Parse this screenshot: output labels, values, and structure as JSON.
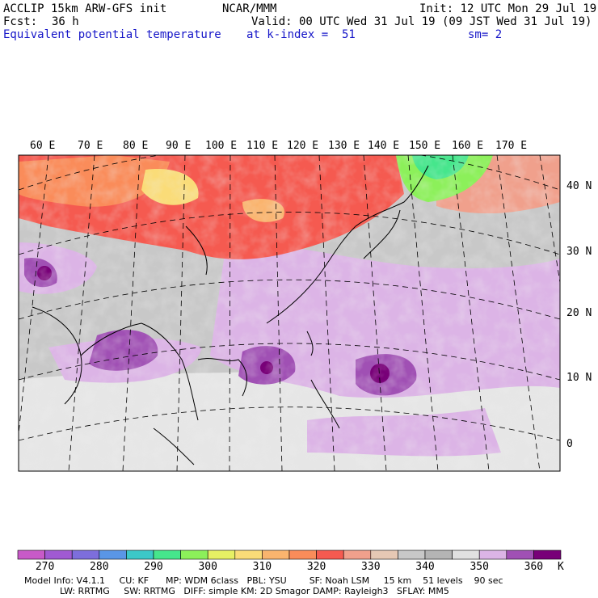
{
  "header": {
    "model": "ACCLIP 15km ARW-GFS init",
    "org": "NCAR/MMM",
    "init": "Init: 12 UTC Mon 29 Jul 19",
    "fcst_label": "Fcst:",
    "fcst_value": "36 h",
    "valid": "Valid: 00 UTC Wed 31 Jul 19 (09 JST Wed 31 Jul 19)",
    "field": "Equivalent potential temperature",
    "level": "at k-index =  51",
    "smoothing": "sm= 2"
  },
  "map": {
    "longitude_labels": [
      "60 E",
      "70 E",
      "80 E",
      "90 E",
      "100 E",
      "110 E",
      "120 E",
      "130 E",
      "140 E",
      "150 E",
      "160 E",
      "170 E"
    ],
    "latitude_labels": [
      "40 N",
      "30 N",
      "20 N",
      "10 N",
      "0"
    ]
  },
  "colorbar": {
    "unit": "K",
    "tick_labels": [
      "270",
      "280",
      "290",
      "300",
      "310",
      "320",
      "330",
      "340",
      "350",
      "360"
    ],
    "colors": [
      "#c85ac8",
      "#a05ad2",
      "#7d6edc",
      "#5a96e6",
      "#3cc8c8",
      "#46e68c",
      "#8cf05a",
      "#e6f064",
      "#fadc78",
      "#fab46e",
      "#fa8c5a",
      "#f55a50",
      "#f0a08c",
      "#e6c8b4",
      "#c8c8c8",
      "#b4b4b4",
      "#e1e1e1",
      "#dcb4e6",
      "#a050b4",
      "#780078"
    ]
  },
  "footer": {
    "line1": "Model Info: V4.1.1     CU: KF      MP: WDM 6class   PBL: YSU        SF: Noah LSM     15 km    51 levels    90 sec",
    "line2": "LW: RRTMG     SW: RRTMG   DIFF: simple KM: 2D Smagor DAMP: Rayleigh3   SFLAY: MM5"
  }
}
